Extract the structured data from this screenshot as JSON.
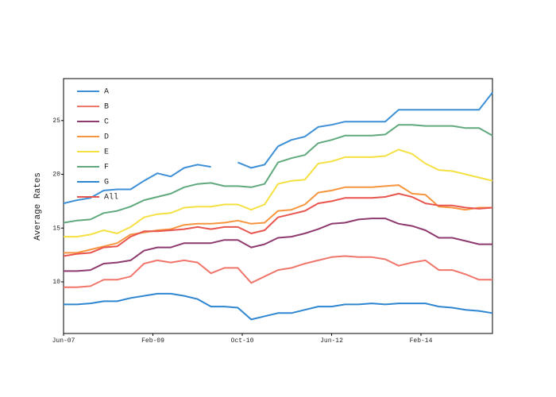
{
  "chart_data": {
    "type": "line",
    "ylabel": "Average Rates",
    "x": [
      "2007-06",
      "2007-09",
      "2007-12",
      "2008-03",
      "2008-06",
      "2008-09",
      "2008-12",
      "2009-03",
      "2009-06",
      "2009-09",
      "2009-12",
      "2010-03",
      "2010-06",
      "2010-09",
      "2010-12",
      "2011-03",
      "2011-06",
      "2011-09",
      "2011-12",
      "2012-03",
      "2012-06",
      "2012-09",
      "2012-12",
      "2013-03",
      "2013-06",
      "2013-09",
      "2013-12",
      "2014-03",
      "2014-06",
      "2014-09",
      "2014-12",
      "2015-03",
      "2015-06"
    ],
    "series": [
      {
        "name": "A",
        "color": "#3d8fd6",
        "values": [
          17.3,
          17.6,
          17.8,
          18.5,
          18.6,
          18.6,
          19.4,
          20.1,
          19.8,
          20.6,
          20.9,
          20.7,
          null,
          21.1,
          20.6,
          20.9,
          22.6,
          23.2,
          23.5,
          24.4,
          24.6,
          24.9,
          24.9,
          24.9,
          24.9,
          26,
          26,
          26,
          26,
          26,
          26,
          26,
          27.6
        ]
      },
      {
        "name": "B",
        "color": "#f0756a",
        "values": [
          9.5,
          9.5,
          9.6,
          10.2,
          10.2,
          10.5,
          11.7,
          12,
          11.8,
          12,
          11.8,
          10.8,
          11.3,
          11.3,
          9.9,
          10.5,
          11.1,
          11.3,
          11.7,
          12,
          12.3,
          12.4,
          12.3,
          12.3,
          12.1,
          11.5,
          11.8,
          12,
          11.1,
          11.1,
          10.7,
          10.2,
          10.2
        ]
      },
      {
        "name": "C",
        "color": "#8e3a6e",
        "values": [
          11,
          11,
          11.1,
          11.7,
          11.8,
          12,
          12.9,
          13.2,
          13.2,
          13.6,
          13.6,
          13.6,
          13.9,
          13.9,
          13.2,
          13.5,
          14.1,
          14.2,
          14.5,
          14.9,
          15.4,
          15.5,
          15.8,
          15.9,
          15.9,
          15.4,
          15.2,
          14.8,
          14.1,
          14.1,
          13.8,
          13.5,
          13.5
        ]
      },
      {
        "name": "D",
        "color": "#f6953e",
        "values": [
          12.7,
          12.7,
          13,
          13.3,
          13.6,
          14.4,
          14.6,
          14.8,
          14.9,
          15.3,
          15.4,
          15.4,
          15.5,
          15.7,
          15.4,
          15.5,
          16.6,
          16.7,
          17.2,
          18.3,
          18.5,
          18.8,
          18.8,
          18.8,
          18.9,
          19,
          18.2,
          18.1,
          17,
          16.9,
          16.7,
          16.9,
          16.9
        ]
      },
      {
        "name": "E",
        "color": "#f5e042",
        "values": [
          14.2,
          14.2,
          14.4,
          14.8,
          14.5,
          15.1,
          16,
          16.3,
          16.4,
          16.9,
          17,
          17,
          17.2,
          17.2,
          16.7,
          17.2,
          19.1,
          19.4,
          19.5,
          21,
          21.2,
          21.6,
          21.6,
          21.6,
          21.7,
          22.3,
          21.9,
          21,
          20.4,
          20.3,
          20,
          19.7,
          19.4
        ]
      },
      {
        "name": "F",
        "color": "#5fa97c",
        "values": [
          15.5,
          15.7,
          15.8,
          16.4,
          16.6,
          17,
          17.6,
          17.9,
          18.2,
          18.8,
          19.1,
          19.2,
          18.9,
          18.9,
          18.8,
          19.1,
          21.1,
          21.5,
          21.8,
          22.9,
          23.2,
          23.6,
          23.6,
          23.6,
          23.7,
          24.6,
          24.6,
          24.5,
          24.5,
          24.5,
          24.3,
          24.3,
          23.6
        ]
      },
      {
        "name": "G",
        "color": "#2f86d0",
        "values": [
          7.9,
          7.9,
          8,
          8.2,
          8.2,
          8.5,
          8.7,
          8.9,
          8.9,
          8.7,
          8.4,
          7.7,
          7.7,
          7.6,
          6.5,
          6.8,
          7.1,
          7.1,
          7.4,
          7.7,
          7.7,
          7.9,
          7.9,
          8,
          7.9,
          8,
          8,
          8,
          7.7,
          7.6,
          7.4,
          7.3,
          7.1
        ]
      },
      {
        "name": "All",
        "color": "#e8554e",
        "values": [
          12.4,
          12.6,
          12.7,
          13.2,
          13.3,
          14.2,
          14.7,
          14.7,
          14.8,
          14.9,
          15.1,
          14.9,
          15.1,
          15.1,
          14.5,
          14.8,
          16,
          16.3,
          16.6,
          17.3,
          17.5,
          17.8,
          17.8,
          17.8,
          17.9,
          18.2,
          17.9,
          17.3,
          17.1,
          17.1,
          16.9,
          16.8,
          16.9
        ]
      }
    ],
    "xlim": [
      "2007-06",
      "2015-06"
    ],
    "xticks": [
      {
        "value": "2007-06",
        "label": "Jun-07"
      },
      {
        "value": "2009-02",
        "label": "Feb-09"
      },
      {
        "value": "2010-10",
        "label": "Oct-10"
      },
      {
        "value": "2012-06",
        "label": "Jun-12"
      },
      {
        "value": "2014-02",
        "label": "Feb-14"
      }
    ],
    "ylim": [
      5.2,
      28.9
    ],
    "yticks": [
      10,
      15,
      20,
      25
    ],
    "legend": "top-left"
  }
}
